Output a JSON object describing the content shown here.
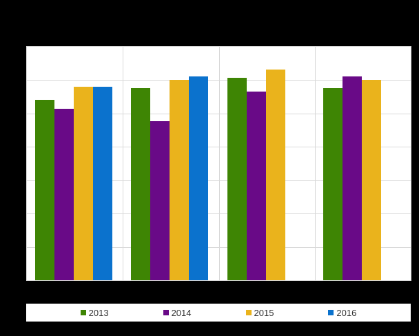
{
  "page": {
    "background_color": "#000000",
    "plot_background_color": "#ffffff",
    "gridline_color": "#d9d9d9",
    "legend_background_color": "#ffffff",
    "legend_text_color": "#333333"
  },
  "chart_data": {
    "type": "bar",
    "title": "",
    "xlabel": "",
    "ylabel": "",
    "categories": [
      "",
      "",
      "",
      ""
    ],
    "series": [
      {
        "name": "2013",
        "color": "#3e8504",
        "values": [
          54.1,
          57.6,
          60.8,
          57.7
        ]
      },
      {
        "name": "2014",
        "color": "#690a87",
        "values": [
          51.4,
          47.8,
          56.6,
          61.1
        ]
      },
      {
        "name": "2015",
        "color": "#eab31c",
        "values": [
          58.1,
          60.0,
          63.2,
          60.1
        ]
      },
      {
        "name": "2016",
        "color": "#0b72cd",
        "values": [
          58.1,
          61.2,
          null,
          null
        ]
      }
    ],
    "ylim": [
      0,
      70
    ],
    "y_gridline_step": 10,
    "grid": true,
    "x_tick_labels_visible": false,
    "y_tick_labels_visible": false,
    "legend_position": "bottom"
  }
}
